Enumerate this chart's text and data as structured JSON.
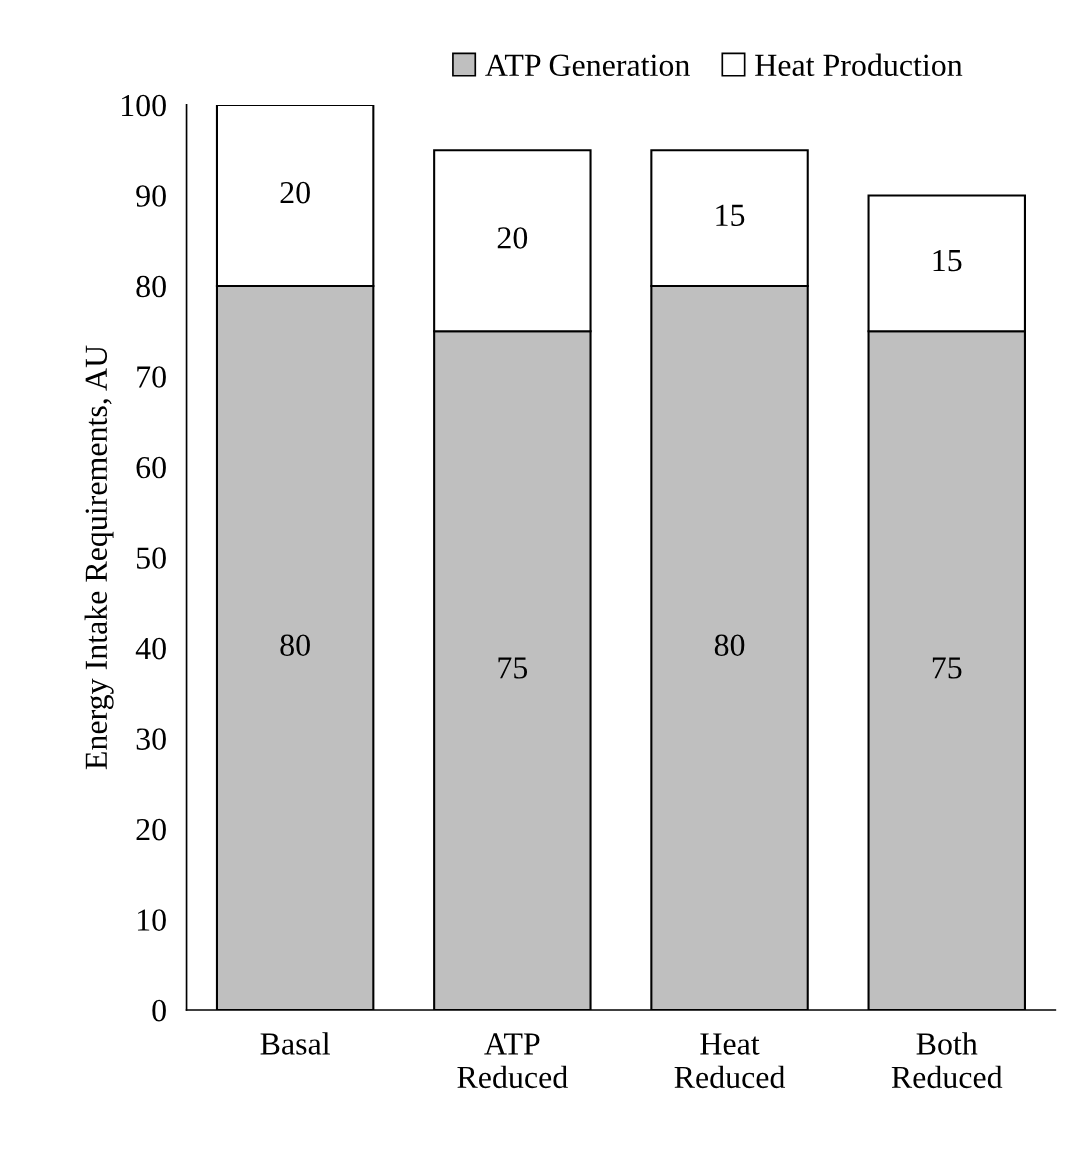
{
  "chart_data": {
    "type": "bar",
    "stacked": true,
    "ylabel": "Energy Intake Requirements, AU",
    "categories": [
      "Basal",
      "ATP\nReduced",
      "Heat\nReduced",
      "Both\nReduced"
    ],
    "series": [
      {
        "name": "ATP Generation",
        "color": "#bfbfbf",
        "values": [
          80,
          75,
          80,
          75
        ]
      },
      {
        "name": "Heat Production",
        "color": "#ffffff",
        "values": [
          20,
          20,
          15,
          15
        ]
      }
    ],
    "ylim": [
      0,
      100
    ],
    "yticks": [
      0,
      10,
      20,
      30,
      40,
      50,
      60,
      70,
      80,
      90,
      100
    ],
    "grid": false,
    "legend": "top",
    "data_labels": true
  }
}
